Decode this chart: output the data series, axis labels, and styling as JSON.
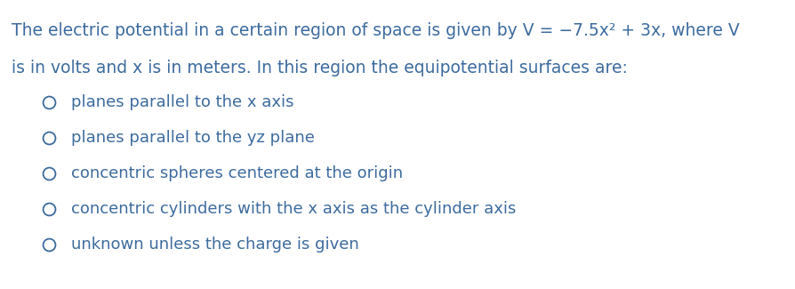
{
  "background_color": "#ffffff",
  "text_color": "#3d6b9e",
  "question_line1": "The electric potential in a certain region of space is given by V = −7.5x² + 3x, where V",
  "question_line2": "is in volts and x is in meters. In this region the equipotential surfaces are:",
  "options": [
    "planes parallel to the x axis",
    "planes parallel to the yz plane",
    "concentric spheres centered at the origin",
    "concentric cylinders with the x axis as the cylinder axis",
    "unknown unless the charge is given"
  ],
  "text_color_opts": "#3d6b9e",
  "question_fontsize": 13.5,
  "option_fontsize": 13.0,
  "figwidth": 8.95,
  "figheight": 3.25,
  "dpi": 100
}
